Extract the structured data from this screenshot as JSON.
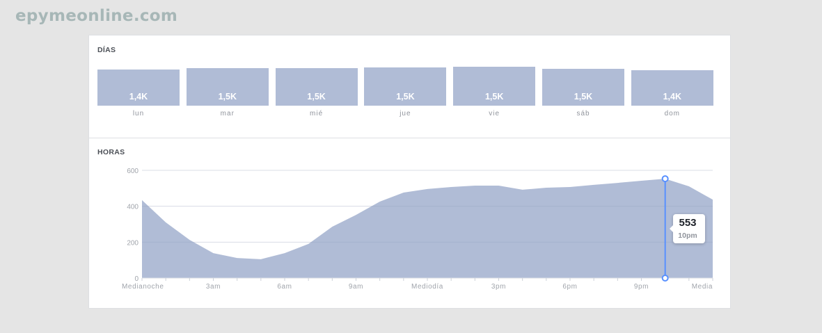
{
  "watermark": "epymeonline.com",
  "days_section": {
    "title": "DÍAS",
    "items": [
      {
        "label": "lun",
        "value_label": "1,4K",
        "value": 1400
      },
      {
        "label": "mar",
        "value_label": "1,5K",
        "value": 1500
      },
      {
        "label": "mié",
        "value_label": "1,5K",
        "value": 1500
      },
      {
        "label": "jue",
        "value_label": "1,5K",
        "value": 1500
      },
      {
        "label": "vie",
        "value_label": "1,5K",
        "value": 1500
      },
      {
        "label": "sáb",
        "value_label": "1,5K",
        "value": 1500
      },
      {
        "label": "dom",
        "value_label": "1,4K",
        "value": 1400
      }
    ]
  },
  "hours_section": {
    "title": "HORAS",
    "tooltip": {
      "value": "553",
      "label": "10pm"
    }
  },
  "colors": {
    "area_fill": "#b0bcd6",
    "cursor": "#5890ff",
    "background": "#e5e5e5",
    "card": "#ffffff"
  },
  "chart_data": [
    {
      "type": "bar",
      "title": "DÍAS",
      "categories": [
        "lun",
        "mar",
        "mié",
        "jue",
        "vie",
        "sáb",
        "dom"
      ],
      "values": [
        1400,
        1500,
        1500,
        1500,
        1500,
        1500,
        1400
      ],
      "data_labels": [
        "1,4K",
        "1,5K",
        "1,5K",
        "1,5K",
        "1,5K",
        "1,5K",
        "1,4K"
      ],
      "xlabel": "",
      "ylabel": ""
    },
    {
      "type": "area",
      "title": "HORAS",
      "x": [
        0,
        1,
        2,
        3,
        4,
        5,
        6,
        7,
        8,
        9,
        10,
        11,
        12,
        13,
        14,
        15,
        16,
        17,
        18,
        19,
        20,
        21,
        22,
        23,
        24
      ],
      "values": [
        434,
        310,
        213,
        139,
        112,
        105,
        139,
        190,
        286,
        352,
        426,
        476,
        496,
        507,
        515,
        515,
        492,
        503,
        507,
        519,
        530,
        542,
        553,
        511,
        437
      ],
      "x_tick_labels": [
        "Medianoche",
        "3am",
        "6am",
        "9am",
        "Mediodía",
        "3pm",
        "6pm",
        "9pm",
        "Media"
      ],
      "x_tick_positions": [
        0,
        3,
        6,
        9,
        12,
        15,
        18,
        21,
        24
      ],
      "y_ticks": [
        0,
        200,
        400,
        600
      ],
      "ylim": [
        0,
        600
      ],
      "grid": true,
      "xlabel": "",
      "ylabel": "",
      "annotation": {
        "x": 22,
        "value": 553,
        "label": "10pm"
      }
    }
  ]
}
